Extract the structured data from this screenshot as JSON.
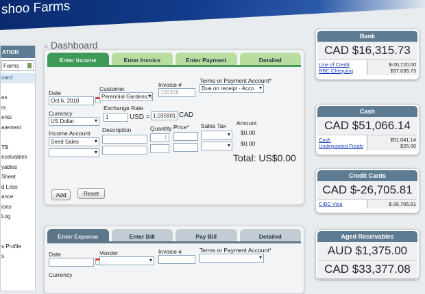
{
  "header": {
    "title": "shoo Farms"
  },
  "sidebar": {
    "nav_heading": "ATION",
    "company": "Farms",
    "items": [
      {
        "label": "oard",
        "active": true
      },
      {
        "label": ""
      },
      {
        "label": "es"
      },
      {
        "label": "rs"
      },
      {
        "label": "ents"
      },
      {
        "label": "atement"
      },
      {
        "label": ""
      },
      {
        "label": "TS",
        "section": true
      },
      {
        "label": "eceivables"
      },
      {
        "label": "yables"
      },
      {
        "label": "Sheet"
      },
      {
        "label": "d Loss"
      },
      {
        "label": "ance"
      },
      {
        "label": "ions"
      },
      {
        "label": "Log"
      },
      {
        "label": ""
      },
      {
        "label": ""
      },
      {
        "label": "s Profile"
      },
      {
        "label": "s"
      }
    ]
  },
  "breadcrumb": "Dashboard",
  "income": {
    "tabs": [
      "Enter Income",
      "Enter Invoice",
      "Enter Payment",
      "Detailed"
    ],
    "labels": {
      "date": "Date",
      "customer": "Customer",
      "invoice": "Invoice #",
      "terms": "Terms or Payment Account*",
      "currency": "Currency",
      "rate": "Exchange Rate",
      "usd": "USD =",
      "cad": "CAD",
      "account": "Income Account",
      "description": "Description",
      "quantity": "Quantity",
      "price": "Price*",
      "tax": "Sales Tax",
      "amount": "Amount"
    },
    "values": {
      "date": "Oct 6, 2010",
      "customer": "Perennial Gardens, Ir",
      "invoice": "100358",
      "terms": "Due on receipt - Acco",
      "currency": "US Dollar",
      "rate_from": "1",
      "rate_to": "1.035901",
      "account1": "Seed Sales",
      "quantity1": "1",
      "amount1": "$0.00",
      "amount2": "$0.00"
    },
    "total": "Total: US$0.00",
    "add": "Add",
    "reset": "Reset"
  },
  "expense": {
    "tabs": [
      "Enter Expense",
      "Enter Bill",
      "Pay Bill",
      "Detailed"
    ],
    "labels": {
      "date": "Date",
      "vendor": "Vendor",
      "invoice": "Invoice #",
      "terms": "Terms or Payment Account*",
      "currency": "Currency"
    }
  },
  "cards": [
    {
      "title": "Bank",
      "totals": [
        "CAD $16,315.73"
      ],
      "accounts": [
        {
          "name": "Line of Credit",
          "value": "$-20,720.00"
        },
        {
          "name": "RBC Chequing",
          "value": "$37,035.73"
        }
      ]
    },
    {
      "title": "Cash",
      "totals": [
        "CAD $51,066.14"
      ],
      "accounts": [
        {
          "name": "Cash",
          "value": "$51,041.14"
        },
        {
          "name": "Undeposited Funds",
          "value": "$25.00"
        }
      ]
    },
    {
      "title": "Credit Cards",
      "totals": [
        "CAD $-26,705.81"
      ],
      "accounts": [
        {
          "name": "CIBC Visa",
          "value": "$-26,705.81"
        }
      ]
    },
    {
      "title": "Aged Receivables",
      "totals": [
        "AUD $1,375.00",
        "CAD $33,377.08"
      ],
      "accounts": []
    }
  ],
  "colors": {
    "header": "#0a2a6e",
    "income_tab": "#3f9a5a",
    "expense_tab": "#5d7688",
    "card_header": "#5d7b93",
    "link": "#1a3fbf"
  }
}
